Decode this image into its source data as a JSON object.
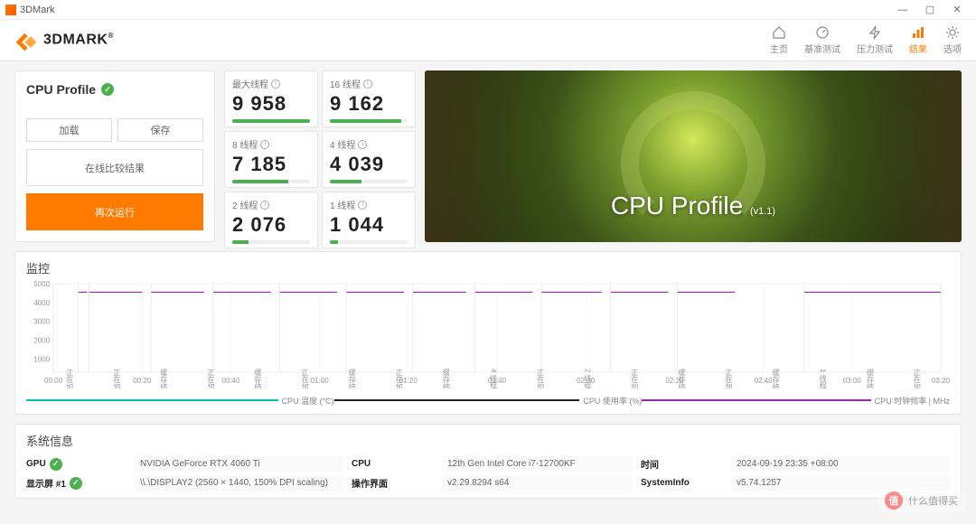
{
  "window": {
    "title": "3DMark"
  },
  "brand": {
    "name": "3DMARK",
    "trademark": "®",
    "logo_color": "#ff7a00"
  },
  "nav": {
    "items": [
      {
        "label": "主页",
        "icon": "home"
      },
      {
        "label": "基准测试",
        "icon": "gauge"
      },
      {
        "label": "压力测试",
        "icon": "bolt"
      },
      {
        "label": "结果",
        "icon": "bars",
        "active": true
      },
      {
        "label": "选项",
        "icon": "gear"
      }
    ]
  },
  "profile": {
    "title": "CPU Profile",
    "buttons": {
      "load": "加载",
      "save": "保存",
      "compare": "在线比较结果",
      "rerun": "再次运行"
    }
  },
  "scores": {
    "tiles": [
      {
        "label": "最大线程",
        "value": "9 958",
        "fill": 100
      },
      {
        "label": "16 线程",
        "value": "9 162",
        "fill": 92
      },
      {
        "label": "8 线程",
        "value": "7 185",
        "fill": 72
      },
      {
        "label": "4 线程",
        "value": "4 039",
        "fill": 41
      },
      {
        "label": "2 线程",
        "value": "2 076",
        "fill": 21
      },
      {
        "label": "1 线程",
        "value": "1 044",
        "fill": 10
      }
    ],
    "bar_color": "#4caf50"
  },
  "hero": {
    "title": "CPU Profile",
    "version": "(v1.1)"
  },
  "monitor": {
    "title": "监控",
    "y_ticks": [
      "5000",
      "4000",
      "3000",
      "2000",
      "1000"
    ],
    "y_unit": "频率 (MHz)",
    "x_ticks": [
      "00:00",
      "00:20",
      "00:40",
      "01:00",
      "01:20",
      "01:40",
      "02:00",
      "02:20",
      "02:40",
      "03:00",
      "03:20"
    ],
    "phase_labels": [
      "正在加载",
      "正在加载",
      "缓存结果",
      "正在加载",
      "缓存结果",
      "正在加载",
      "缓存结果",
      "正在加载",
      "缓存结果",
      "4 线程",
      "正在加载",
      "2 线程",
      "正在加载",
      "缓存结果",
      "正在加载",
      "缓存结果",
      "1 线程",
      "缓存结果",
      "正在加载"
    ],
    "freq_line": {
      "color": "#9c27b0",
      "y_value": 4700,
      "y_max": 5200,
      "segments": [
        [
          28,
          38
        ],
        [
          40,
          100
        ],
        [
          110,
          170
        ],
        [
          180,
          245
        ],
        [
          255,
          320
        ],
        [
          330,
          395
        ],
        [
          405,
          465
        ],
        [
          475,
          540
        ],
        [
          550,
          618
        ],
        [
          628,
          693
        ],
        [
          703,
          768
        ],
        [
          846,
          1000
        ]
      ]
    },
    "metrics": [
      {
        "label": "CPU 温度 (°C)",
        "color": "#00c4a7"
      },
      {
        "label": "CPU 使用率 (%)",
        "color": "#222222"
      },
      {
        "label": "CPU 时钟频率 | MHz",
        "color": "#9c27b0"
      }
    ]
  },
  "sysinfo": {
    "title": "系统信息",
    "rows": [
      {
        "k1": "GPU",
        "v1": "NVIDIA GeForce RTX 4060 Ti",
        "check1": true,
        "k2": "CPU",
        "v2": "12th Gen Intel Core i7-12700KF",
        "k3": "时间",
        "v3": "2024-09-19 23:35 +08:00"
      },
      {
        "k1": "显示屏 #1",
        "v1": "\\\\.\\DISPLAY2 (2560 × 1440, 150% DPI scaling)",
        "check1": true,
        "k2": "操作界面",
        "v2": "v2.29.8294 s64",
        "k3": "SystemInfo",
        "v3": "v5.74.1257"
      }
    ]
  },
  "watermark": {
    "text": "什么值得买",
    "badge": "值"
  }
}
